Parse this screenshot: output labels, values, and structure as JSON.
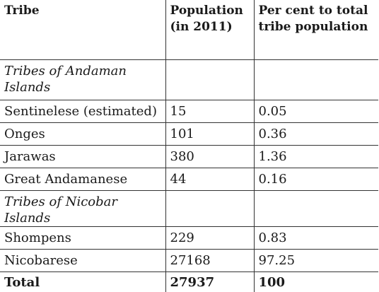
{
  "table": {
    "headers": {
      "tribe": "Tribe",
      "population": "Population (in 2011)",
      "percent": "Per cent to total tribe population"
    },
    "section_andaman": "Tribes of Andaman Islands",
    "andaman_rows": [
      {
        "tribe": "Sentinelese (estimated)",
        "population": "15",
        "percent": "0.05"
      },
      {
        "tribe": "Onges",
        "population": "101",
        "percent": "0.36"
      },
      {
        "tribe": "Jarawas",
        "population": "380",
        "percent": "1.36"
      },
      {
        "tribe": "Great Andamanese",
        "population": "44",
        "percent": "0.16"
      }
    ],
    "section_nicobar": "Tribes of Nicobar Islands",
    "nicobar_rows": [
      {
        "tribe": "Shompens",
        "population": "229",
        "percent": "0.83"
      },
      {
        "tribe": "Nicobarese",
        "population": "27168",
        "percent": "97.25"
      }
    ],
    "total": {
      "tribe": "Total",
      "population": "27937",
      "percent": "100"
    }
  }
}
